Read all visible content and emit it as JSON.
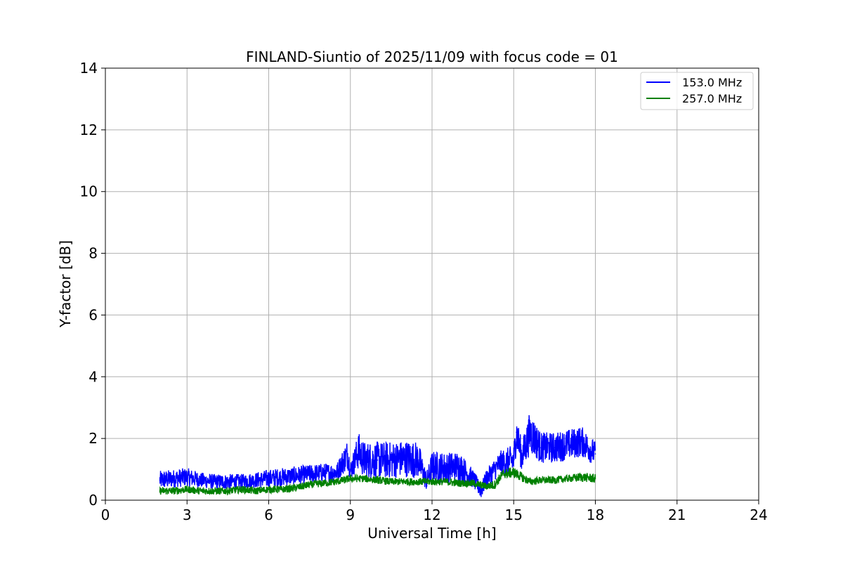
{
  "chart_data": {
    "type": "line",
    "title": "FINLAND-Siuntio of 2025/11/09 with focus code = 01",
    "xlabel": "Universal Time [h]",
    "ylabel": "Y-factor [dB]",
    "xlim": [
      0,
      24
    ],
    "ylim": [
      0,
      14
    ],
    "xticks": [
      0,
      3,
      6,
      9,
      12,
      15,
      18,
      21,
      24
    ],
    "yticks": [
      0,
      2,
      4,
      6,
      8,
      10,
      12,
      14
    ],
    "grid": true,
    "legend_position": "top-right",
    "series": [
      {
        "name": " 153.0 MHz",
        "color": "#0000ff",
        "x": [
          2.0,
          2.5,
          3.0,
          3.5,
          4.0,
          4.5,
          5.0,
          5.5,
          6.0,
          6.5,
          7.0,
          7.5,
          8.0,
          8.5,
          8.9,
          9.0,
          9.3,
          9.5,
          10.0,
          10.5,
          11.0,
          11.5,
          11.8,
          12.0,
          12.5,
          13.0,
          13.5,
          13.8,
          14.0,
          14.5,
          15.0,
          15.1,
          15.3,
          15.6,
          16.0,
          16.5,
          17.0,
          17.5,
          18.0
        ],
        "values": [
          0.65,
          0.7,
          0.75,
          0.65,
          0.6,
          0.6,
          0.6,
          0.65,
          0.7,
          0.75,
          0.8,
          0.85,
          0.9,
          0.9,
          1.5,
          0.95,
          1.6,
          1.3,
          1.3,
          1.3,
          1.35,
          1.3,
          0.6,
          1.1,
          1.05,
          1.1,
          0.7,
          0.3,
          0.7,
          1.2,
          1.3,
          2.2,
          1.4,
          2.2,
          1.7,
          1.7,
          1.8,
          1.9,
          1.5
        ],
        "band": [
          0.3,
          0.3,
          0.3,
          0.25,
          0.25,
          0.25,
          0.25,
          0.25,
          0.3,
          0.3,
          0.3,
          0.3,
          0.3,
          0.3,
          0.5,
          0.3,
          0.6,
          0.6,
          0.6,
          0.6,
          0.6,
          0.6,
          0.3,
          0.5,
          0.5,
          0.5,
          0.3,
          0.25,
          0.3,
          0.4,
          0.5,
          0.6,
          0.5,
          0.7,
          0.5,
          0.5,
          0.5,
          0.5,
          0.4
        ]
      },
      {
        "name": "257.0 MHz",
        "color": "#008000",
        "x": [
          2.0,
          2.5,
          3.0,
          3.5,
          4.0,
          4.5,
          5.0,
          5.5,
          6.0,
          6.5,
          7.0,
          7.5,
          8.0,
          8.5,
          9.0,
          9.5,
          10.0,
          10.5,
          11.0,
          11.5,
          12.0,
          12.5,
          13.0,
          13.5,
          14.0,
          14.3,
          14.6,
          15.0,
          15.3,
          15.6,
          16.0,
          16.5,
          17.0,
          17.5,
          18.0
        ],
        "values": [
          0.3,
          0.3,
          0.35,
          0.3,
          0.3,
          0.3,
          0.35,
          0.3,
          0.35,
          0.35,
          0.4,
          0.5,
          0.55,
          0.6,
          0.7,
          0.7,
          0.65,
          0.6,
          0.6,
          0.6,
          0.6,
          0.6,
          0.55,
          0.55,
          0.45,
          0.5,
          0.85,
          0.9,
          0.75,
          0.6,
          0.65,
          0.65,
          0.7,
          0.75,
          0.7
        ],
        "band": [
          0.12,
          0.12,
          0.12,
          0.12,
          0.12,
          0.12,
          0.12,
          0.12,
          0.12,
          0.12,
          0.12,
          0.12,
          0.12,
          0.12,
          0.12,
          0.12,
          0.12,
          0.12,
          0.12,
          0.12,
          0.12,
          0.12,
          0.12,
          0.12,
          0.12,
          0.15,
          0.15,
          0.18,
          0.15,
          0.12,
          0.12,
          0.12,
          0.12,
          0.15,
          0.15
        ]
      }
    ]
  }
}
